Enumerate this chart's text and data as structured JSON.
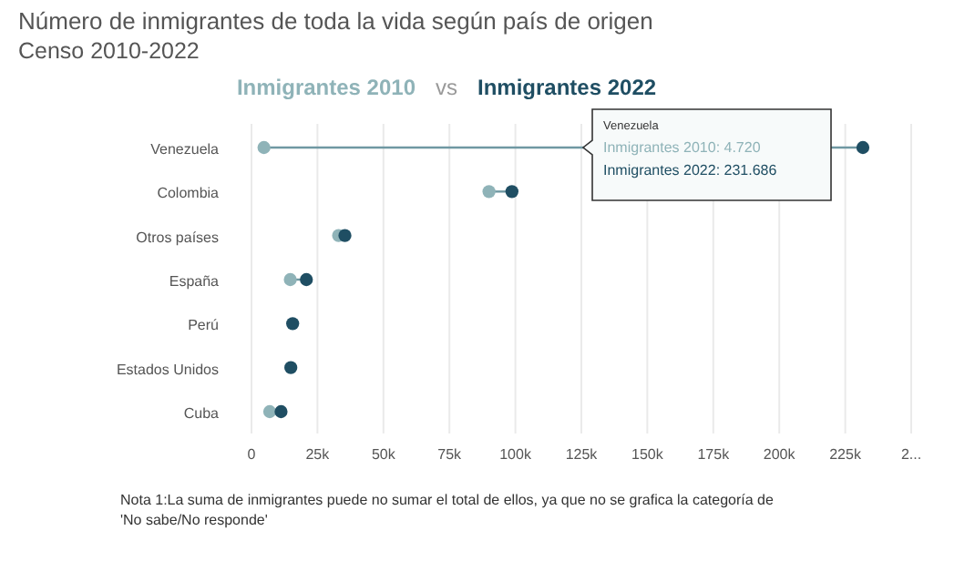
{
  "chart_data": {
    "type": "scatter",
    "orientation": "horizontal",
    "title": "Número de inmigrantes de toda la vida según país de origen",
    "subtitle": "Censo 2010-2022",
    "categories": [
      "Venezuela",
      "Colombia",
      "Otros países",
      "España",
      "Perú",
      "Estados Unidos",
      "Cuba"
    ],
    "series": [
      {
        "name": "Inmigrantes 2010",
        "color": "#8fb3b8",
        "values": [
          4720,
          90000,
          33000,
          14700,
          null,
          null,
          6900
        ]
      },
      {
        "name": "Inmigrantes 2022",
        "color": "#1f4e63",
        "values": [
          231686,
          98700,
          35400,
          20800,
          15600,
          14900,
          11200
        ]
      }
    ],
    "xlim": [
      0,
      250000
    ],
    "xticks": [
      {
        "value": 0,
        "label": "0"
      },
      {
        "value": 25000,
        "label": "25k"
      },
      {
        "value": 50000,
        "label": "50k"
      },
      {
        "value": 75000,
        "label": "75k"
      },
      {
        "value": 100000,
        "label": "100k"
      },
      {
        "value": 125000,
        "label": "125k"
      },
      {
        "value": 150000,
        "label": "150k"
      },
      {
        "value": 175000,
        "label": "175k"
      },
      {
        "value": 200000,
        "label": "200k"
      },
      {
        "value": 225000,
        "label": "225k"
      },
      {
        "value": 250000,
        "label": "2..."
      }
    ],
    "grid": "x",
    "legend": "top",
    "marker": "circle",
    "annotations": [
      "vs",
      "Venezuela",
      "Inmigrantes 2010: 4.720",
      "Inmigrantes 2022: 231.686",
      "Nota 1:La suma de inmigrantes puede no sumar el total de ellos, ya que no se grafica la categoría de 'No sabe/No responde'"
    ]
  }
}
